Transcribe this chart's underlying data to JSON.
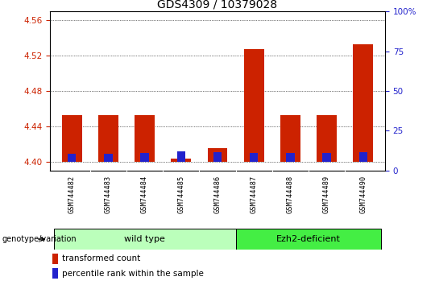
{
  "title": "GDS4309 / 10379028",
  "samples": [
    "GSM744482",
    "GSM744483",
    "GSM744484",
    "GSM744485",
    "GSM744486",
    "GSM744487",
    "GSM744488",
    "GSM744489",
    "GSM744490"
  ],
  "transformed_count": [
    4.453,
    4.453,
    4.453,
    4.403,
    4.415,
    4.527,
    4.453,
    4.453,
    4.533
  ],
  "percentile_rank_pct": [
    5.0,
    5.0,
    5.5,
    6.5,
    6.0,
    5.5,
    5.5,
    5.5,
    6.0
  ],
  "ylim_left": [
    4.39,
    4.57
  ],
  "ylim_right": [
    0,
    100
  ],
  "yticks_left": [
    4.4,
    4.44,
    4.48,
    4.52,
    4.56
  ],
  "yticks_right": [
    0,
    25,
    50,
    75,
    100
  ],
  "bar_color_red": "#cc2200",
  "bar_color_blue": "#2222cc",
  "background_plot": "#ffffff",
  "tick_label_color_left": "#cc2200",
  "tick_label_color_right": "#2222cc",
  "groups": [
    {
      "label": "wild type",
      "start": 0,
      "end": 4,
      "color": "#bbffbb"
    },
    {
      "label": "Ezh2-deficient",
      "start": 5,
      "end": 8,
      "color": "#44ee44"
    }
  ],
  "legend_transformed": "transformed count",
  "legend_percentile": "percentile rank within the sample",
  "genotype_label": "genotype/variation",
  "base_value": 4.4
}
